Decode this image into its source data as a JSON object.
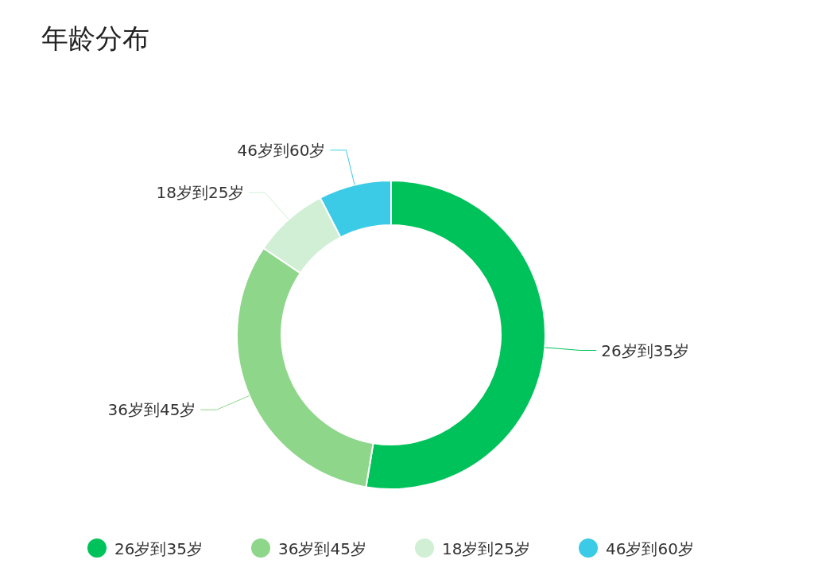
{
  "chart_data": {
    "type": "donut",
    "title": "年龄分布",
    "categories": [
      "26岁到35岁",
      "36岁到45岁",
      "18岁到25岁",
      "46岁到60岁"
    ],
    "values": [
      52.6,
      31.9,
      7.9,
      7.6
    ],
    "colors": [
      "#00c25a",
      "#8ed68a",
      "#d0efd4",
      "#3ccbe6"
    ],
    "legend": "bottom"
  }
}
